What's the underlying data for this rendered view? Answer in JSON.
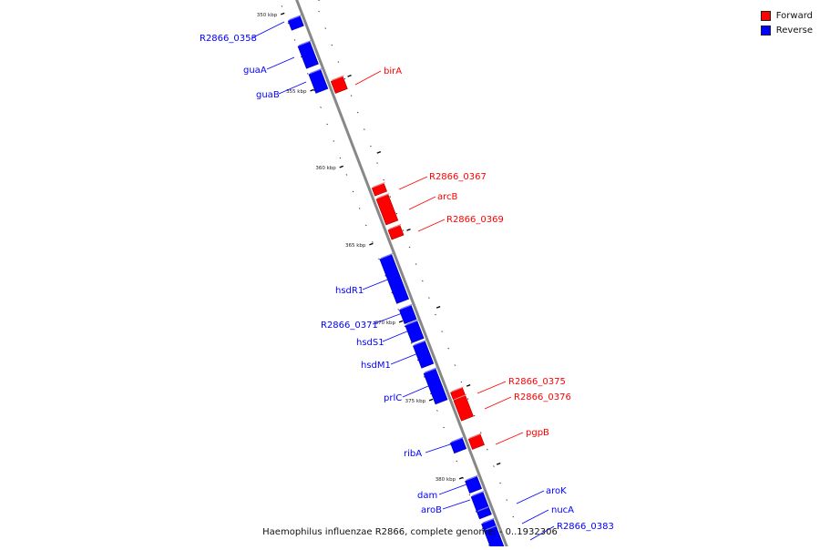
{
  "caption": "Haemophilus influenzae R2866, complete genome: - 0..1932306",
  "legend": [
    {
      "label": "Forward",
      "color": "#ff0000"
    },
    {
      "label": "Reverse",
      "color": "#0000ff"
    }
  ],
  "colors": {
    "forward": "#ff0000",
    "reverse": "#0000ff",
    "backbone": "#888888"
  },
  "ticks": [
    "350 kbp",
    "355 kbp",
    "360 kbp",
    "365 kbp",
    "370 kbp",
    "375 kbp",
    "380 kbp"
  ],
  "genes": [
    {
      "name": "R2866_0358",
      "strand": "reverse"
    },
    {
      "name": "guaA",
      "strand": "reverse"
    },
    {
      "name": "guaB",
      "strand": "reverse"
    },
    {
      "name": "birA",
      "strand": "forward"
    },
    {
      "name": "R2866_0367",
      "strand": "forward"
    },
    {
      "name": "arcB",
      "strand": "forward"
    },
    {
      "name": "R2866_0369",
      "strand": "forward"
    },
    {
      "name": "hsdR1",
      "strand": "reverse"
    },
    {
      "name": "R2866_0371",
      "strand": "reverse"
    },
    {
      "name": "hsdS1",
      "strand": "reverse"
    },
    {
      "name": "hsdM1",
      "strand": "reverse"
    },
    {
      "name": "prlC",
      "strand": "reverse"
    },
    {
      "name": "R2866_0375",
      "strand": "forward"
    },
    {
      "name": "R2866_0376",
      "strand": "forward"
    },
    {
      "name": "pgpB",
      "strand": "forward"
    },
    {
      "name": "ribA",
      "strand": "reverse"
    },
    {
      "name": "dam",
      "strand": "reverse"
    },
    {
      "name": "aroB",
      "strand": "reverse"
    },
    {
      "name": "aroK",
      "strand": "reverse"
    },
    {
      "name": "nucA",
      "strand": "reverse"
    },
    {
      "name": "R2866_0383",
      "strand": "reverse"
    }
  ]
}
